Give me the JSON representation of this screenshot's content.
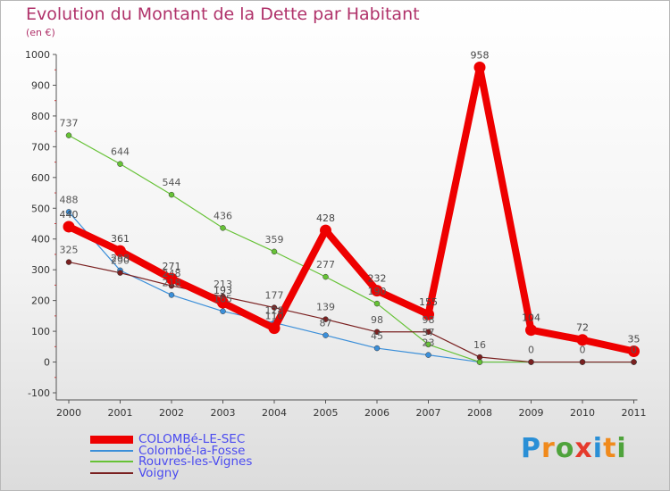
{
  "header": {
    "title": "Evolution du Montant de la Dette par Habitant",
    "subtitle": "(en €)"
  },
  "brand": {
    "text": "Proxiti",
    "letter_colors": [
      "#2a8fd6",
      "#f08a1c",
      "#4fa33c",
      "#e53a2c",
      "#2a8fd6",
      "#f08a1c",
      "#4fa33c"
    ]
  },
  "chart_data": {
    "type": "line",
    "categories": [
      "2000",
      "2001",
      "2002",
      "2003",
      "2004",
      "2005",
      "2006",
      "2007",
      "2008",
      "2009",
      "2010",
      "2011"
    ],
    "ylim": [
      -100,
      1000
    ],
    "yticks": [
      -100,
      0,
      100,
      200,
      300,
      400,
      500,
      600,
      700,
      800,
      900,
      1000
    ],
    "grid": false,
    "legend_position": "bottom-left",
    "series": [
      {
        "name": "COLOMBé-LE-SEC",
        "color": "#ee0000",
        "values": [
          440,
          361,
          271,
          193,
          110,
          428,
          232,
          155,
          958,
          104,
          72,
          35
        ],
        "labels": [
          "440",
          "361",
          "271",
          "193",
          "110",
          "428",
          "232",
          "155",
          "958",
          "104",
          "72",
          "35"
        ]
      },
      {
        "name": "Colombé-la-Fosse",
        "color": "#3b8fd9",
        "values": [
          488,
          298,
          218,
          165,
          128,
          87,
          45,
          23,
          0,
          0,
          0,
          0
        ],
        "labels": [
          "488",
          "298",
          "218",
          "165",
          "128",
          "87",
          "45",
          "23",
          "",
          "",
          "",
          ""
        ]
      },
      {
        "name": "Rouvres-les-Vignes",
        "color": "#66c236",
        "values": [
          737,
          644,
          544,
          436,
          359,
          277,
          190,
          57,
          0,
          0,
          0,
          0
        ],
        "labels": [
          "737",
          "644",
          "544",
          "436",
          "359",
          "277",
          "190",
          "57",
          "",
          "",
          "",
          ""
        ]
      },
      {
        "name": "Voigny",
        "color": "#7a2020",
        "values": [
          325,
          290,
          248,
          213,
          177,
          139,
          98,
          98,
          16,
          0,
          0,
          0
        ],
        "labels": [
          "325",
          "290",
          "248",
          "213",
          "177",
          "139",
          "98",
          "98",
          "16",
          "0",
          "0",
          "0"
        ]
      }
    ]
  }
}
